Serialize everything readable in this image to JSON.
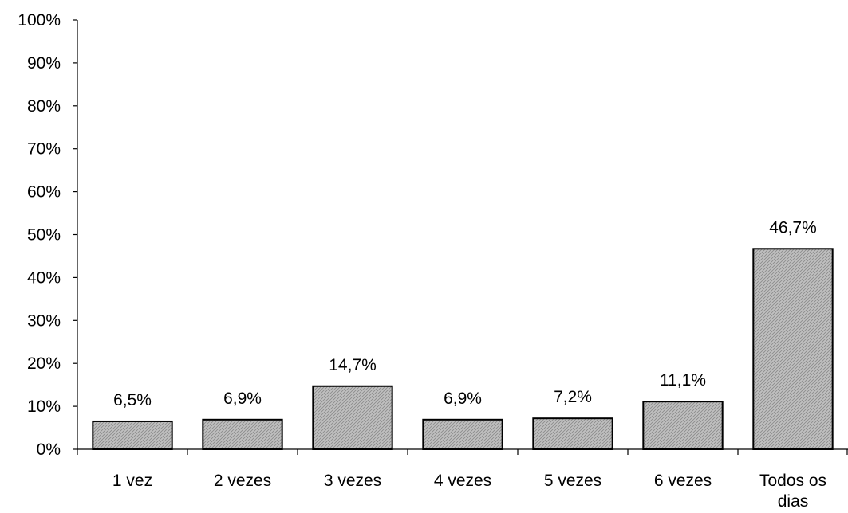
{
  "chart_data": {
    "type": "bar",
    "title": "",
    "xlabel": "",
    "ylabel": "",
    "categories": [
      [
        "1 vez"
      ],
      [
        "2 vezes"
      ],
      [
        "3 vezes"
      ],
      [
        "4 vezes"
      ],
      [
        "5 vezes"
      ],
      [
        "6 vezes"
      ],
      [
        "Todos os",
        "dias"
      ]
    ],
    "values": [
      6.5,
      6.9,
      14.7,
      6.9,
      7.2,
      11.1,
      46.7
    ],
    "value_labels": [
      "6,5%",
      "6,9%",
      "14,7%",
      "6,9%",
      "7,2%",
      "11,1%",
      "46,7%"
    ],
    "ylim": [
      0,
      100
    ],
    "y_ticks": [
      0,
      10,
      20,
      30,
      40,
      50,
      60,
      70,
      80,
      90,
      100
    ],
    "y_tick_labels": [
      "0%",
      "10%",
      "20%",
      "30%",
      "40%",
      "50%",
      "60%",
      "70%",
      "80%",
      "90%",
      "100%"
    ],
    "grid": false,
    "legend": "none",
    "colors": {
      "bar_fill": "#c0c0c0",
      "bar_hatch": "#8a8a8a",
      "bar_stroke": "#000000",
      "axis": "#000000",
      "text": "#000000"
    }
  }
}
